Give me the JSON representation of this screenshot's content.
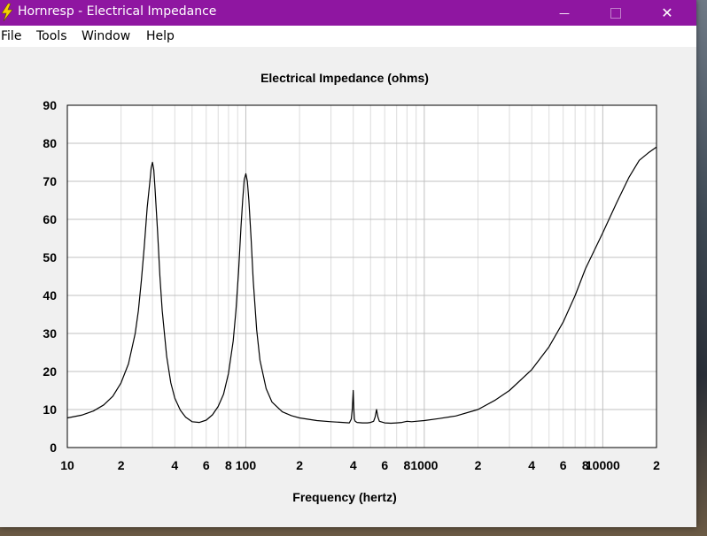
{
  "window": {
    "title": "Hornresp - Electrical Impedance",
    "minimize_glyph": "—",
    "close_glyph": "✕"
  },
  "menu": [
    {
      "label": "File"
    },
    {
      "label": "Tools"
    },
    {
      "label": "Window"
    },
    {
      "label": "Help"
    }
  ],
  "colors": {
    "titlebar": "#8f16a1",
    "plot_bg": "#ffffff",
    "grid_major": "#c0c0c0",
    "grid_minor": "#dcdcdc",
    "curve": "#000000"
  },
  "chart_data": {
    "type": "line",
    "title": "Electrical Impedance (ohms)",
    "xlabel": "Frequency (hertz)",
    "ylabel": "",
    "x_scale": "log",
    "xlim": [
      10,
      20000
    ],
    "ylim": [
      0,
      90
    ],
    "grid": true,
    "y_ticks": [
      0,
      10,
      20,
      30,
      40,
      50,
      60,
      70,
      80,
      90
    ],
    "x_tick_labels": [
      {
        "value": 10,
        "label": "10"
      },
      {
        "value": 20,
        "label": "2"
      },
      {
        "value": 40,
        "label": "4"
      },
      {
        "value": 60,
        "label": "6"
      },
      {
        "value": 80,
        "label": "8"
      },
      {
        "value": 100,
        "label": "100"
      },
      {
        "value": 200,
        "label": "2"
      },
      {
        "value": 400,
        "label": "4"
      },
      {
        "value": 600,
        "label": "6"
      },
      {
        "value": 800,
        "label": "8"
      },
      {
        "value": 1000,
        "label": "1000"
      },
      {
        "value": 2000,
        "label": "2"
      },
      {
        "value": 4000,
        "label": "4"
      },
      {
        "value": 6000,
        "label": "6"
      },
      {
        "value": 8000,
        "label": "8"
      },
      {
        "value": 10000,
        "label": "10000"
      },
      {
        "value": 20000,
        "label": "2"
      }
    ],
    "series": [
      {
        "x": [
          10,
          12,
          14,
          16,
          18,
          20,
          22,
          24,
          25,
          26,
          27,
          28,
          29,
          29.5,
          30,
          30.5,
          31,
          32,
          33,
          34,
          36,
          38,
          40,
          43,
          46,
          50,
          55,
          60,
          65,
          70,
          75,
          80,
          85,
          88,
          91,
          94,
          96,
          98,
          100,
          102,
          104,
          107,
          110,
          115,
          120,
          130,
          140,
          160,
          180,
          200,
          250,
          300,
          350,
          380,
          390,
          395,
          400,
          403,
          406,
          410,
          420,
          450,
          480,
          500,
          520,
          530,
          540,
          550,
          560,
          600,
          650,
          700,
          750,
          800,
          850,
          900,
          1000,
          1200,
          1500,
          2000,
          2500,
          3000,
          4000,
          5000,
          6000,
          7000,
          8000,
          10000,
          12000,
          14000,
          16000,
          18000,
          20000
        ],
        "y": [
          7.8,
          8.5,
          9.6,
          11.2,
          13.5,
          17.0,
          22.0,
          30.0,
          36.0,
          44.0,
          53.0,
          63.0,
          70.0,
          73.5,
          75.0,
          73.0,
          68.0,
          57.0,
          45.0,
          36.0,
          24.0,
          17.0,
          13.0,
          9.8,
          8.0,
          6.8,
          6.6,
          7.2,
          8.6,
          10.8,
          14.0,
          19.5,
          28.0,
          36.0,
          46.0,
          58.0,
          65.0,
          70.5,
          72.0,
          70.0,
          65.0,
          55.0,
          44.0,
          31.0,
          23.0,
          15.5,
          12.0,
          9.4,
          8.4,
          7.8,
          7.1,
          6.8,
          6.6,
          6.5,
          7.5,
          10.0,
          15.0,
          10.0,
          7.5,
          6.9,
          6.6,
          6.5,
          6.5,
          6.6,
          6.9,
          8.0,
          10.0,
          8.0,
          6.9,
          6.5,
          6.4,
          6.5,
          6.6,
          6.9,
          6.8,
          6.9,
          7.1,
          7.6,
          8.3,
          10.0,
          12.5,
          15.0,
          20.5,
          26.5,
          33.0,
          40.0,
          47.0,
          56.5,
          64.5,
          71.0,
          75.5,
          77.5,
          79.0
        ]
      }
    ]
  }
}
